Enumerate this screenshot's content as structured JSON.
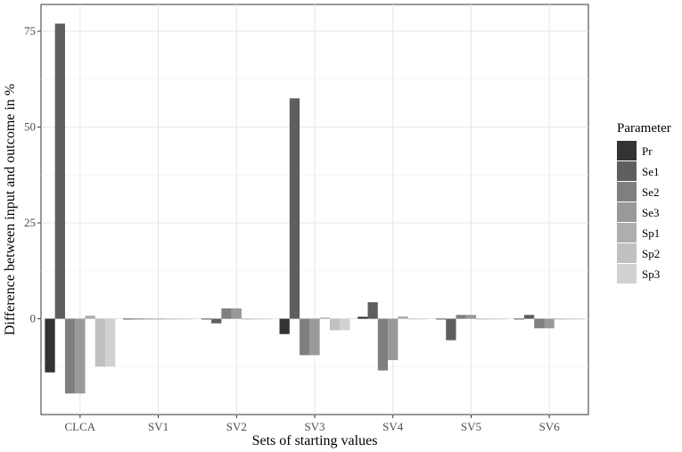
{
  "chart_data": {
    "type": "bar",
    "xlabel": "Sets of starting values",
    "ylabel": "Difference between input and outcome in %",
    "categories": [
      "CLCA",
      "SV1",
      "SV2",
      "SV3",
      "SV4",
      "SV5",
      "SV6"
    ],
    "yticks": [
      0,
      25,
      50,
      75
    ],
    "ytick_labels": [
      "0",
      "25",
      "50",
      "75"
    ],
    "ylim": [
      -25,
      82
    ],
    "grid": true,
    "legend": {
      "title": "Parameter",
      "placement": "right"
    },
    "series": [
      {
        "name": "Pr",
        "color": "#333333",
        "values": [
          -14,
          0,
          0,
          -4,
          0.5,
          0,
          0
        ]
      },
      {
        "name": "Se1",
        "color": "#5e5e5e",
        "values": [
          77,
          0,
          -1.2,
          57.5,
          4.3,
          -5.6,
          1
        ]
      },
      {
        "name": "Se2",
        "color": "#7f7f7f",
        "values": [
          -19.5,
          0,
          2.7,
          -9.5,
          -13.5,
          1,
          -2.5
        ]
      },
      {
        "name": "Se3",
        "color": "#999999",
        "values": [
          -19.5,
          0,
          2.7,
          -9.5,
          -10.8,
          1,
          -2.5
        ]
      },
      {
        "name": "Sp1",
        "color": "#aeaeae",
        "values": [
          0.8,
          0,
          0,
          0.3,
          0.6,
          0,
          0
        ]
      },
      {
        "name": "Sp2",
        "color": "#c0c0c0",
        "values": [
          -12.5,
          0,
          0,
          -3,
          0,
          0,
          0
        ]
      },
      {
        "name": "Sp3",
        "color": "#d1d1d1",
        "values": [
          -12.5,
          0,
          0,
          -3,
          0,
          0,
          0
        ]
      }
    ]
  }
}
